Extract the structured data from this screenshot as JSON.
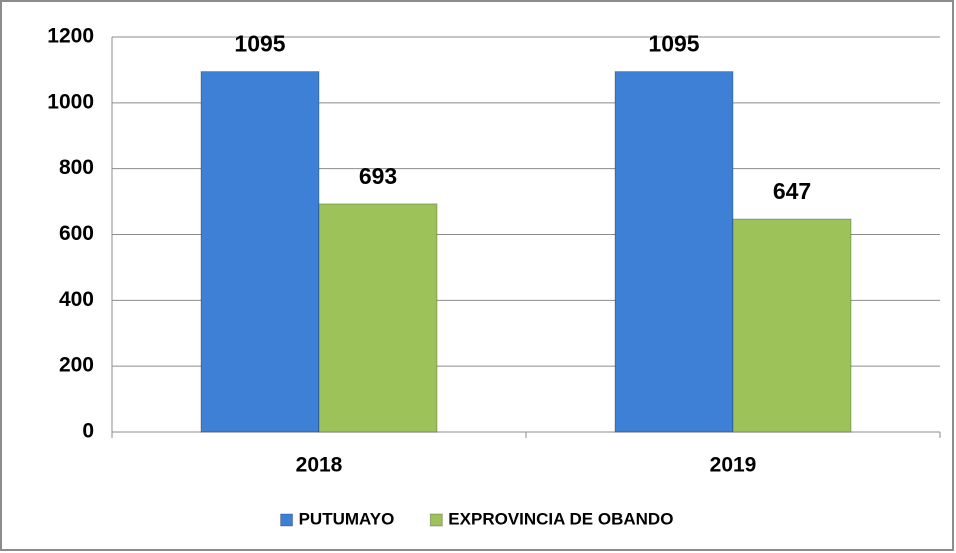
{
  "chart_data": {
    "type": "bar",
    "categories": [
      "2018",
      "2019"
    ],
    "series": [
      {
        "name": "PUTUMAYO",
        "color": "#3d80d6",
        "values": [
          1095,
          1095
        ]
      },
      {
        "name": "EXPROVINCIA DE OBANDO",
        "color": "#9dc25a",
        "values": [
          693,
          647
        ]
      }
    ],
    "ylim": [
      0,
      1200
    ],
    "yticks": [
      0,
      200,
      400,
      600,
      800,
      1000,
      1200
    ],
    "grid": true,
    "legend": "bottom"
  }
}
